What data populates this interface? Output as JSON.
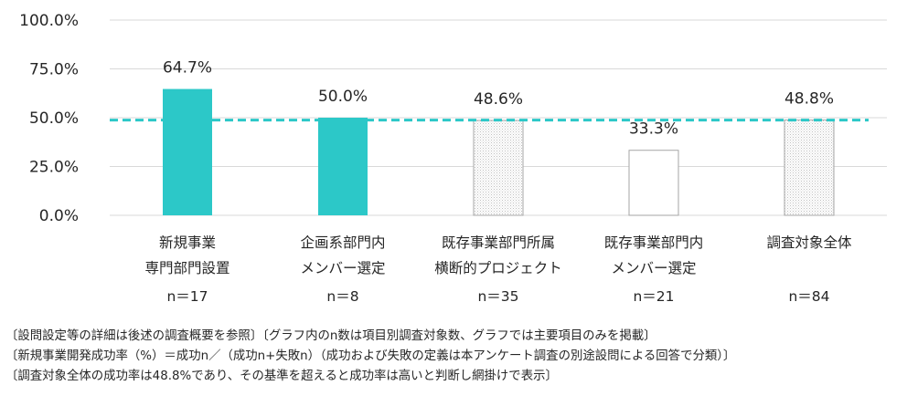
{
  "chart_data": {
    "type": "bar",
    "categories": [
      [
        "新規事業",
        "専門部門設置",
        "n＝17"
      ],
      [
        "企画系部門内",
        "メンバー選定",
        "n＝8"
      ],
      [
        "既存事業部門所属",
        "横断的プロジェクト",
        "n＝35"
      ],
      [
        "既存事業部門内",
        "メンバー選定",
        "n＝21"
      ],
      [
        "調査対象全体",
        "",
        "n＝84"
      ]
    ],
    "values": [
      64.7,
      50.0,
      48.6,
      33.3,
      48.8
    ],
    "value_labels": [
      "64.7%",
      "50.0%",
      "48.6%",
      "33.3%",
      "48.8%"
    ],
    "bar_styles": [
      "solid",
      "solid",
      "hatched",
      "plain",
      "hatched"
    ],
    "yticks": [
      "0.0%",
      "25.0%",
      "50.0%",
      "75.0%",
      "100.0%"
    ],
    "ylim": [
      0,
      100
    ],
    "reference_line": 48.8,
    "grid": true,
    "colors": {
      "solid": "#2cc8c8",
      "plain": "#ffffff",
      "hatch": "#bfbfbf",
      "outline": "#a6a6a6",
      "reference": "#2cc8c8",
      "grid": "#d9d9d9"
    }
  },
  "notes": [
    "〔設問設定等の詳細は後述の調査概要を参照〕〔グラフ内のn数は項目別調査対象数、グラフでは主要項目のみを掲載〕",
    "〔新規事業開発成功率（%）＝成功n／（成功n+失敗n）（成功および失敗の定義は本アンケート調査の別途設問による回答で分類）〕",
    "〔調査対象全体の成功率は48.8%であり、その基準を超えると成功率は高いと判断し網掛けで表示〕"
  ]
}
